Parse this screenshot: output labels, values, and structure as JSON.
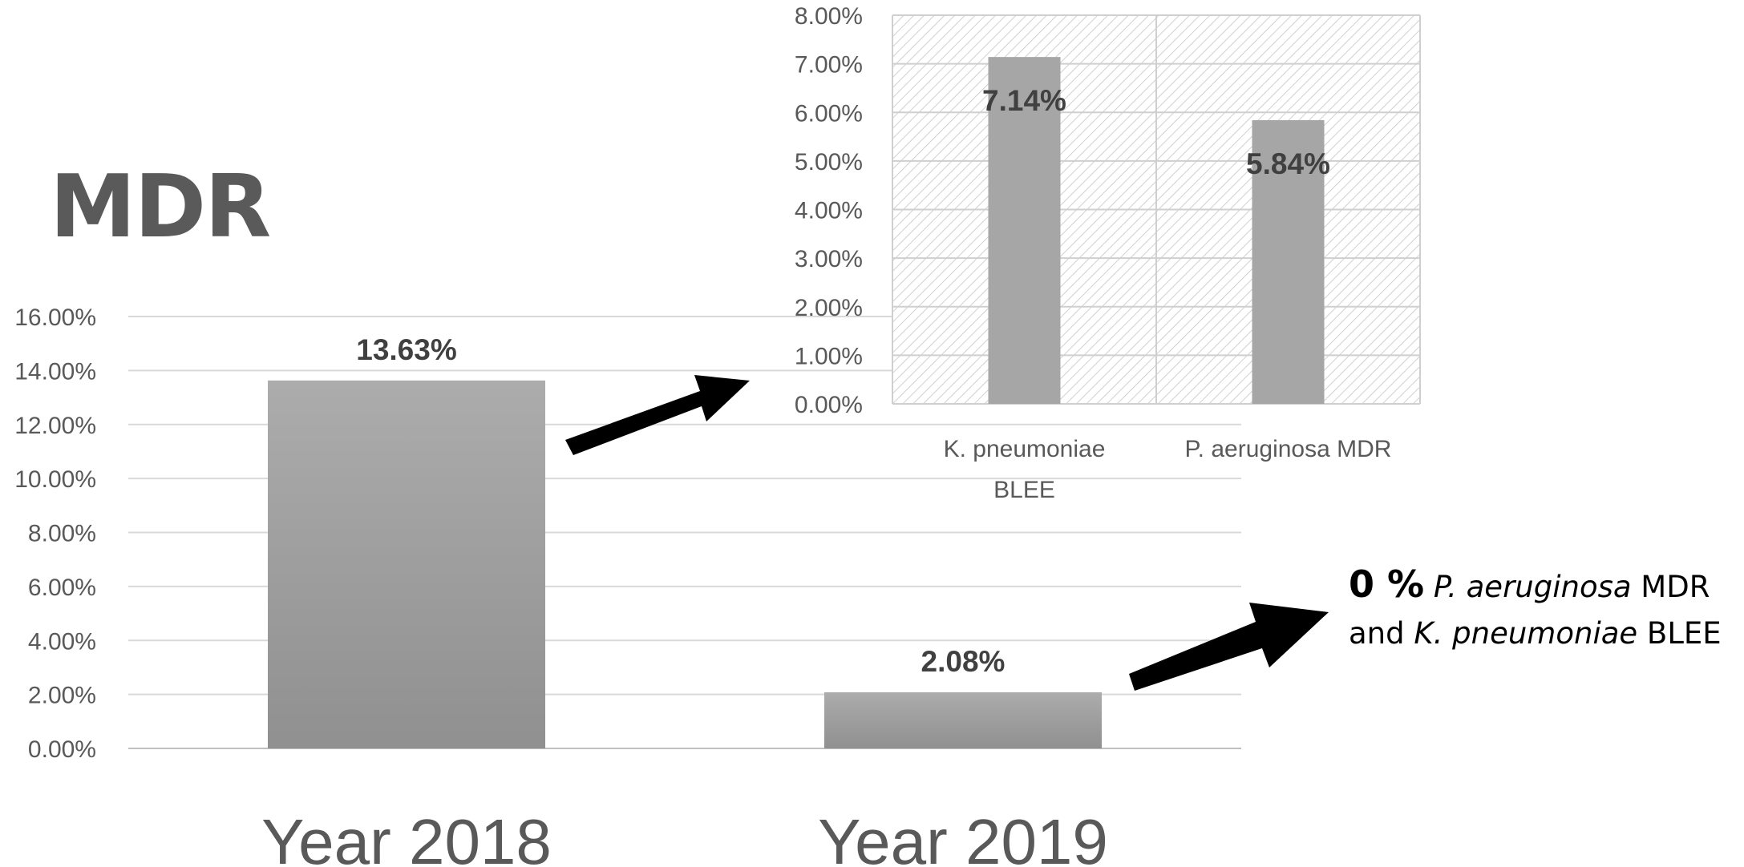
{
  "title": "MDR",
  "main_chart": {
    "type": "bar",
    "categories": [
      "Year 2018",
      "Year 2019"
    ],
    "values": [
      13.63,
      2.08
    ],
    "value_labels": [
      "13.63%",
      "2.08%"
    ],
    "ylim": [
      0,
      16
    ],
    "yticks": [
      "0.00%",
      "2.00%",
      "4.00%",
      "6.00%",
      "8.00%",
      "10.00%",
      "12.00%",
      "14.00%",
      "16.00%"
    ],
    "grid": true,
    "bar_color": "#a6a6a6"
  },
  "inset_chart": {
    "type": "bar",
    "categories": [
      "K. pneumoniae BLEE",
      "P. aeruginosa MDR"
    ],
    "category_lines": [
      [
        "K. pneumoniae",
        "BLEE"
      ],
      [
        "P. aeruginosa MDR"
      ]
    ],
    "values": [
      7.14,
      5.84
    ],
    "value_labels": [
      "7.14%",
      "5.84%"
    ],
    "ylim": [
      0,
      8
    ],
    "yticks": [
      "0.00%",
      "1.00%",
      "2.00%",
      "3.00%",
      "4.00%",
      "5.00%",
      "6.00%",
      "7.00%",
      "8.00%"
    ],
    "grid": true,
    "plot_background": "hatched",
    "bar_color": "#a6a6a6"
  },
  "annotation": {
    "zero_text": "0 %",
    "species_1": "P. aeruginosa",
    "middle_text": " MDR",
    "and_text": "and ",
    "species_2": "K. pneumoniae",
    "end_text": " BLEE"
  },
  "chart_data": [
    {
      "type": "bar",
      "categories": [
        "Year 2018",
        "Year 2019"
      ],
      "values": [
        13.63,
        2.08
      ],
      "title": "MDR",
      "xlabel": "",
      "ylabel": "",
      "ylim": [
        0,
        16
      ],
      "grid": true
    },
    {
      "type": "bar",
      "categories": [
        "K. pneumoniae BLEE",
        "P. aeruginosa MDR"
      ],
      "values": [
        7.14,
        5.84
      ],
      "title": "",
      "xlabel": "",
      "ylabel": "",
      "ylim": [
        0,
        8
      ],
      "grid": true
    }
  ]
}
